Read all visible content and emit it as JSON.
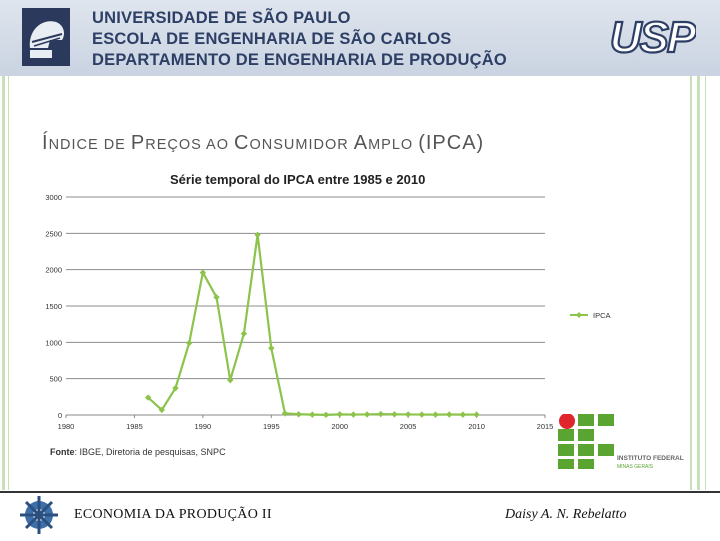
{
  "header": {
    "line1": "UNIVERSIDADE DE SÃO PAULO",
    "line2": "ESCOLA DE ENGENHARIA DE SÃO CARLOS",
    "line3": "DEPARTAMENTO DE ENGENHARIA DE PRODUÇÃO",
    "logo_right_text": "USP",
    "logo_color": "#2e3f66"
  },
  "slide": {
    "title_parts": [
      {
        "big": "Í",
        "small": "NDICE DE "
      },
      {
        "big": "P",
        "small": "REÇOS AO "
      },
      {
        "big": "C",
        "small": "ONSUMIDOR "
      },
      {
        "big": "A",
        "small": "MPLO "
      },
      {
        "big": "(IPCA)",
        "small": ""
      }
    ]
  },
  "chart_data": {
    "type": "line",
    "title": "Série temporal do IPCA entre 1985 e 2010",
    "xlim": [
      1980,
      2015
    ],
    "ylim": [
      0,
      3000
    ],
    "x_ticks": [
      1980,
      1985,
      1990,
      1995,
      2000,
      2005,
      2010,
      2015
    ],
    "y_ticks": [
      0,
      500,
      1000,
      1500,
      2000,
      2500,
      3000
    ],
    "grid": "horizontal",
    "legend_position": "right",
    "line_color": "#8cc34a",
    "series": [
      {
        "name": "IPCA",
        "x": [
          1986,
          1987,
          1988,
          1989,
          1990,
          1991,
          1992,
          1993,
          1994,
          1995,
          1996,
          1997,
          1998,
          1999,
          2000,
          2001,
          2002,
          2003,
          2004,
          2005,
          2006,
          2007,
          2008,
          2009,
          2010
        ],
        "y": [
          240,
          70,
          370,
          990,
          1960,
          1620,
          480,
          1120,
          2480,
          920,
          22,
          10,
          5,
          2,
          9,
          6,
          8,
          13,
          9,
          8,
          6,
          5,
          7,
          5,
          6
        ]
      }
    ]
  },
  "source": {
    "label": "Fonte",
    "text": ": IBGE, Diretoria de pesquisas, SNPC"
  },
  "ifmg": {
    "line1": "INSTITUTO FEDERAL",
    "line2": "MINAS GERAIS",
    "green": "#5aa532",
    "red": "#e0262b"
  },
  "footer": {
    "left": "ECONOMIA DA PRODUÇÃO II",
    "right": "Daisy A. N. Rebelatto"
  }
}
